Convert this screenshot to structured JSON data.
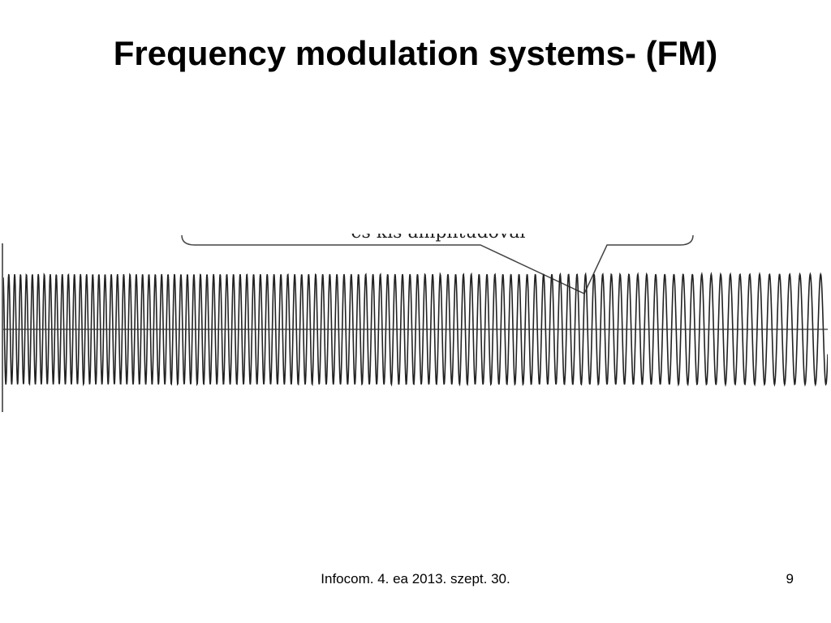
{
  "slide": {
    "title": "Frequency modulation systems- (FM)",
    "footer": "Infocom. 4. ea 2013. szept. 30.",
    "page_number": "9"
  },
  "figure": {
    "callout_text": "és kis amplitúdóval",
    "waveform_color": "#222222",
    "axis_color": "#333333"
  }
}
